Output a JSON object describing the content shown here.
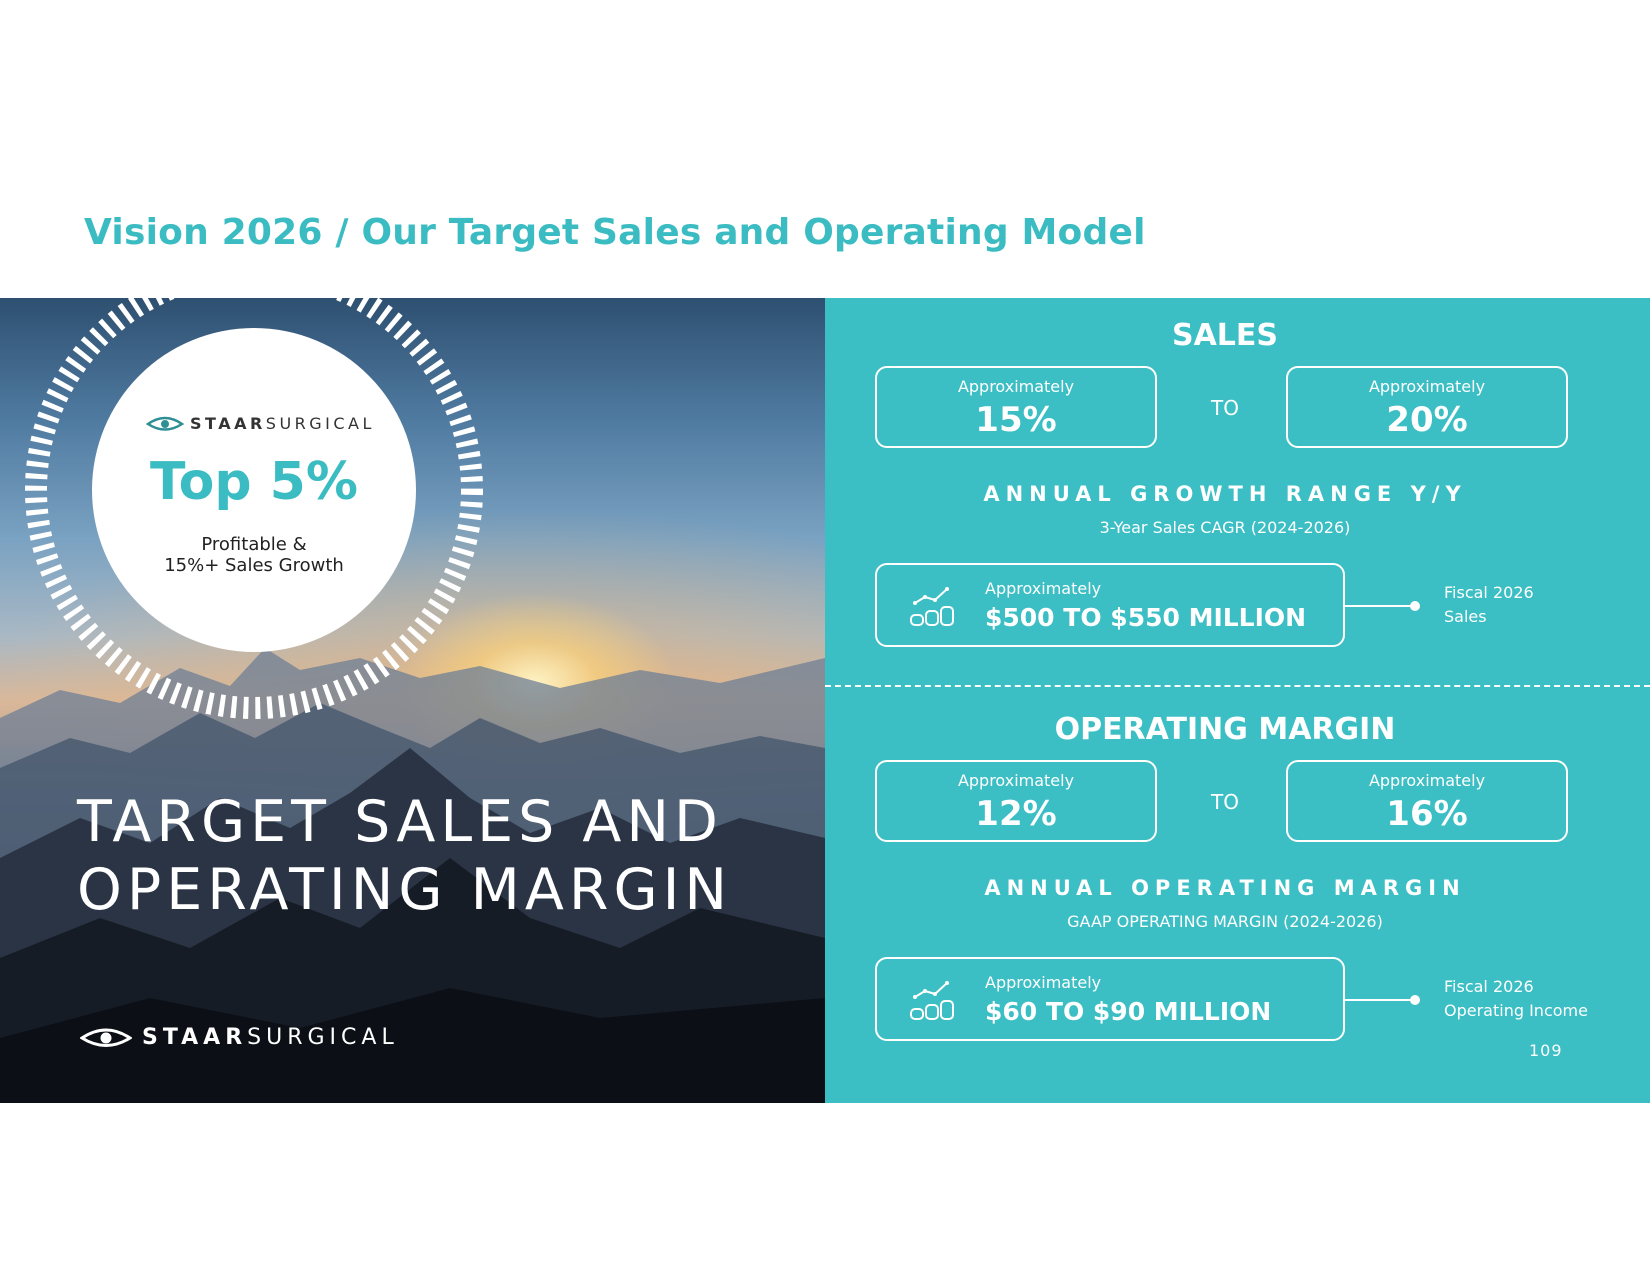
{
  "page": {
    "title": "Vision 2026 / Our Target Sales and Operating Model",
    "number": "109"
  },
  "brand": {
    "name_strong": "STAAR",
    "name_light": "SURGICAL"
  },
  "hero": {
    "badge_value": "Top 5%",
    "badge_subtitle_line1": "Profitable &",
    "badge_subtitle_line2": "15%+ Sales Growth",
    "heading_line1": "TARGET SALES AND",
    "heading_line2": "OPERATING MARGIN"
  },
  "sales": {
    "title": "SALES",
    "low": {
      "approx": "Approximately",
      "value": "15%"
    },
    "connector": "TO",
    "high": {
      "approx": "Approximately",
      "value": "20%"
    },
    "range_label": "ANNUAL GROWTH RANGE Y/Y",
    "range_sub": "3-Year Sales CAGR (2024-2026)",
    "target": {
      "approx": "Approximately",
      "value": "$500 TO $550 MILLION"
    },
    "fiscal_line1": "Fiscal 2026",
    "fiscal_line2": "Sales"
  },
  "operating_margin": {
    "title": "OPERATING MARGIN",
    "low": {
      "approx": "Approximately",
      "value": "12%"
    },
    "connector": "TO",
    "high": {
      "approx": "Approximately",
      "value": "16%"
    },
    "range_label": "ANNUAL OPERATING MARGIN",
    "range_sub": "GAAP OPERATING MARGIN (2024-2026)",
    "target": {
      "approx": "Approximately",
      "value": "$60 TO $90 MILLION"
    },
    "fiscal_line1": "Fiscal 2026",
    "fiscal_line2": "Operating Income"
  },
  "icons": {
    "brand_eye": "eye-logo-icon",
    "growth": "coins-growth-chart-icon"
  },
  "colors": {
    "accent": "#3bbcc2",
    "panel": "#3bbec4",
    "text_on_panel": "#ffffff"
  }
}
